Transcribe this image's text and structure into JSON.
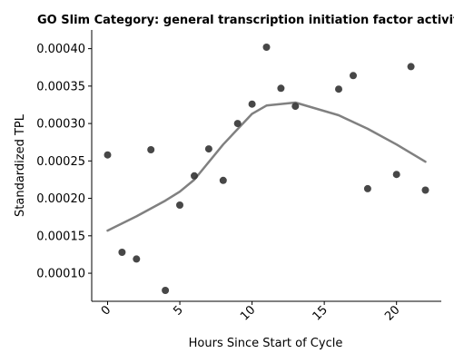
{
  "chart_data": {
    "type": "scatter",
    "title": "GO Slim Category: general transcription initiation factor activity",
    "xlabel": "Hours Since Start of Cycle",
    "ylabel": "Standardized TPL",
    "xlim": [
      -1.1,
      23.1
    ],
    "ylim": [
      6.25e-05,
      0.000425
    ],
    "xticks": [
      0,
      5,
      10,
      15,
      20
    ],
    "xtick_labels": [
      "0",
      "5",
      "10",
      "15",
      "20"
    ],
    "yticks": [
      0.0001,
      0.00015,
      0.0002,
      0.00025,
      0.0003,
      0.00035,
      0.0004
    ],
    "ytick_labels": [
      "0.00010",
      "0.00015",
      "0.00020",
      "0.00025",
      "0.00030",
      "0.00035",
      "0.00040"
    ],
    "grid": false,
    "points": [
      {
        "x": 0,
        "y": 0.000258
      },
      {
        "x": 1,
        "y": 0.000128
      },
      {
        "x": 2,
        "y": 0.000119
      },
      {
        "x": 3,
        "y": 0.000265
      },
      {
        "x": 4,
        "y": 7.7e-05
      },
      {
        "x": 5,
        "y": 0.000191
      },
      {
        "x": 6,
        "y": 0.00023
      },
      {
        "x": 7,
        "y": 0.000266
      },
      {
        "x": 8,
        "y": 0.000224
      },
      {
        "x": 9,
        "y": 0.0003
      },
      {
        "x": 10,
        "y": 0.000326
      },
      {
        "x": 11,
        "y": 0.000402
      },
      {
        "x": 12,
        "y": 0.000347
      },
      {
        "x": 13,
        "y": 0.000323
      },
      {
        "x": 16,
        "y": 0.000346
      },
      {
        "x": 17,
        "y": 0.000364
      },
      {
        "x": 18,
        "y": 0.000213
      },
      {
        "x": 20,
        "y": 0.000232
      },
      {
        "x": 21,
        "y": 0.000376
      },
      {
        "x": 22,
        "y": 0.000211
      }
    ],
    "trend_line": [
      {
        "x": 0,
        "y": 0.000157
      },
      {
        "x": 2,
        "y": 0.000176
      },
      {
        "x": 4,
        "y": 0.000197
      },
      {
        "x": 5,
        "y": 0.000209
      },
      {
        "x": 6,
        "y": 0.000225
      },
      {
        "x": 8,
        "y": 0.000272
      },
      {
        "x": 10,
        "y": 0.000313
      },
      {
        "x": 11,
        "y": 0.000324
      },
      {
        "x": 13,
        "y": 0.000328
      },
      {
        "x": 16,
        "y": 0.000311
      },
      {
        "x": 18,
        "y": 0.000293
      },
      {
        "x": 20,
        "y": 0.000272
      },
      {
        "x": 22,
        "y": 0.000249
      }
    ],
    "colors": {
      "points": "#333333",
      "trend_line": "#808080",
      "axis": "#000000"
    }
  }
}
